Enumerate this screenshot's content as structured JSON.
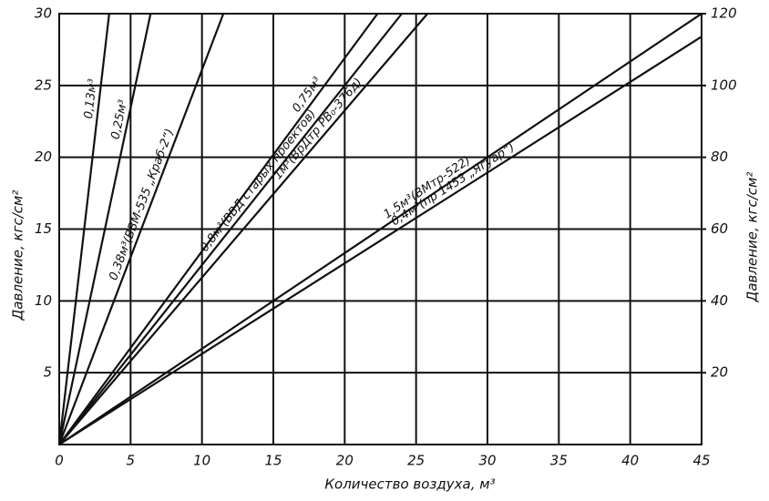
{
  "chart_data": {
    "type": "line",
    "x_label": "Количество воздуха, м³",
    "y_label": "Давление, кгс/см²",
    "y2_label": "Давление, кгс/см²",
    "xlim": [
      0,
      45
    ],
    "xticks": [
      0,
      5,
      10,
      15,
      20,
      25,
      30,
      35,
      40,
      45
    ],
    "ylim": [
      0,
      30
    ],
    "yticks": [
      5,
      10,
      15,
      20,
      25,
      30
    ],
    "y2lim": [
      0,
      120
    ],
    "y2ticks": [
      20,
      40,
      60,
      80,
      100,
      120
    ],
    "grid": true,
    "series": [
      {
        "name": "0,13м³",
        "color": "#111",
        "x": [
          0,
          3.5
        ],
        "values": [
          0,
          30
        ]
      },
      {
        "name": "0,25м³",
        "color": "#111",
        "x": [
          0,
          6.4
        ],
        "values": [
          0,
          30
        ]
      },
      {
        "name": "0,38м³(ВВМ-535 „Краб-2“)",
        "color": "#111",
        "x": [
          0,
          11.5
        ],
        "values": [
          0,
          30
        ]
      },
      {
        "name": "0,75м³",
        "color": "#111",
        "x": [
          0,
          22.3
        ],
        "values": [
          0,
          30
        ]
      },
      {
        "name": "0,8м³(ВВД старых проектов)",
        "color": "#111",
        "x": [
          0,
          24
        ],
        "values": [
          0,
          30
        ]
      },
      {
        "name": "1м³(ВрДтр РВ₀-376д)",
        "color": "#111",
        "x": [
          0,
          25.8
        ],
        "values": [
          0,
          30
        ]
      },
      {
        "name": "1,5м³(ВМтр-522)",
        "color": "#111",
        "x": [
          0,
          45
        ],
        "values": [
          0,
          30
        ]
      },
      {
        "name": "0,4м³(пр 1453 „Ягуар“)",
        "color": "#111",
        "x": [
          0,
          45
        ],
        "values": [
          0,
          28.4
        ]
      }
    ]
  }
}
